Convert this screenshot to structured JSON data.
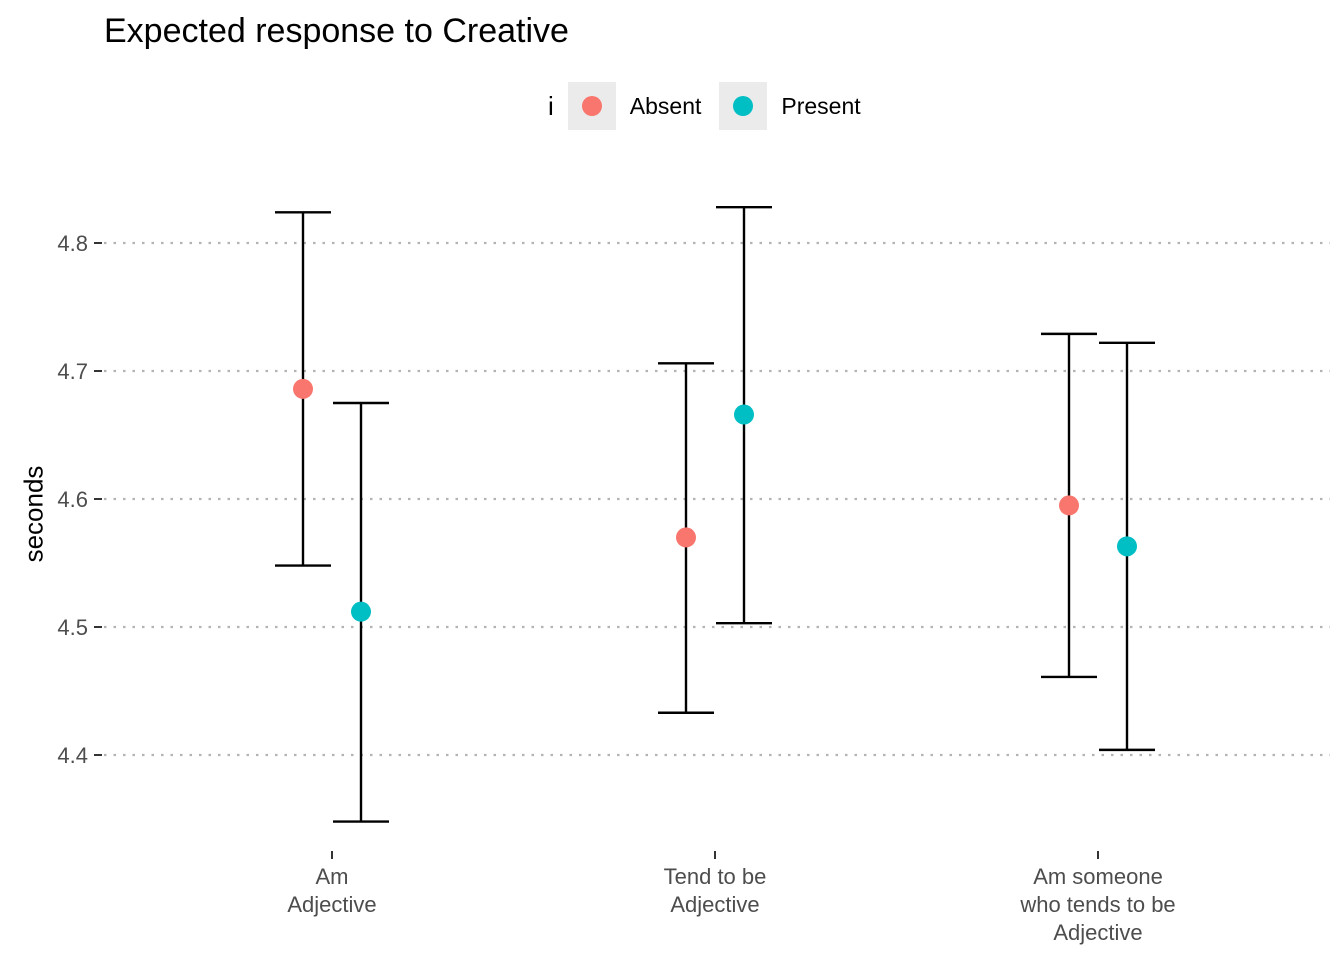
{
  "chart_data": {
    "type": "errorbar",
    "title": "Expected response to Creative",
    "xlabel": "",
    "ylabel": "seconds",
    "ylim": [
      4.34,
      4.84
    ],
    "yticks": [
      "4.4",
      "4.5",
      "4.6",
      "4.7",
      "4.8"
    ],
    "grid": "horizontal dotted",
    "legend": {
      "title": "i",
      "position": "top",
      "entries": [
        "Absent",
        "Present"
      ]
    },
    "categories": [
      [
        "Am",
        "Adjective"
      ],
      [
        "Tend to be",
        "Adjective"
      ],
      [
        "Am someone",
        "who tends to be",
        "Adjective"
      ]
    ],
    "series": [
      {
        "name": "Absent",
        "color": "#F8766D",
        "values": [
          4.686,
          4.57,
          4.595
        ],
        "lower": [
          4.548,
          4.433,
          4.461
        ],
        "upper": [
          4.824,
          4.706,
          4.729
        ]
      },
      {
        "name": "Present",
        "color": "#00BFC4",
        "values": [
          4.512,
          4.666,
          4.563
        ],
        "lower": [
          4.348,
          4.503,
          4.404
        ],
        "upper": [
          4.675,
          4.828,
          4.722
        ]
      }
    ]
  }
}
